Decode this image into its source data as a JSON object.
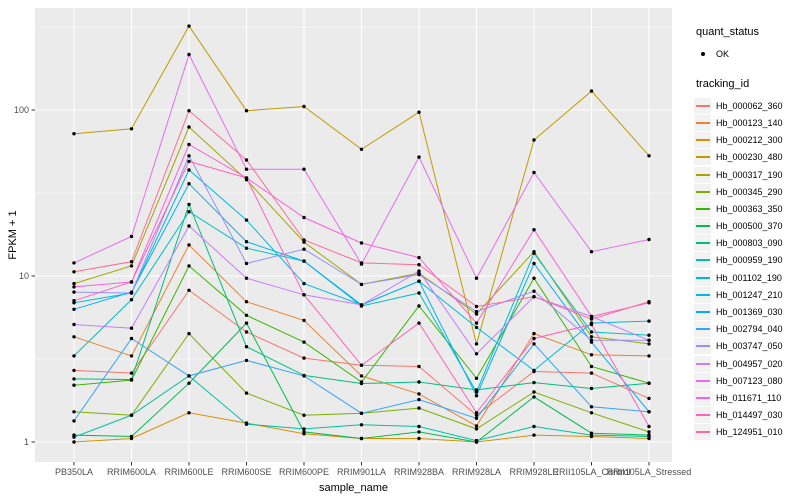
{
  "figure": {
    "panel_background": "#EBEBEB",
    "grid_color": "#FFFFFF",
    "tick_color": "#333333",
    "tick_label_color": "#4D4D4D"
  },
  "legend": {
    "quant_status": {
      "title": "quant_status",
      "items": [
        {
          "label": "OK",
          "symbol": "black-point"
        }
      ]
    },
    "tracking_id": {
      "title": "tracking_id"
    }
  },
  "chart_data": {
    "type": "line",
    "xlabel": "sample_name",
    "ylabel": "FPKM + 1",
    "log_y": true,
    "y_tick_values": [
      1,
      10,
      100
    ],
    "y_tick_labels": [
      "1",
      "10",
      "100"
    ],
    "y_minor_values": [
      3.162,
      31.62,
      316.2
    ],
    "ylim": [
      0.76,
      410
    ],
    "grid": true,
    "legend_position": "right",
    "point_marker": "black-dot",
    "categories": [
      "PB350LA",
      "RRIM600LA",
      "RRIM600LE",
      "RRIM600SE",
      "RRIM600PE",
      "RRIM901LA",
      "RRIM928BA",
      "RRIM928LA",
      "RRIM928LE",
      "RRII105LA_Control",
      "RRII105LA_Stressed"
    ],
    "series": [
      {
        "name": "Hb_000062_360",
        "color": "#F8766D",
        "values": [
          2.7,
          2.6,
          8.2,
          4.6,
          3.2,
          2.9,
          2.85,
          1.45,
          2.66,
          2.6,
          1.83
        ]
      },
      {
        "name": "Hb_000123_140",
        "color": "#EA8331",
        "values": [
          4.3,
          3.3,
          15.4,
          7.0,
          5.4,
          2.5,
          1.95,
          1.25,
          4.5,
          3.35,
          3.3
        ]
      },
      {
        "name": "Hb_000212_300",
        "color": "#D89000",
        "values": [
          1.0,
          1.05,
          1.5,
          1.3,
          1.12,
          1.05,
          1.05,
          1.0,
          1.1,
          1.08,
          1.05
        ]
      },
      {
        "name": "Hb_000230_480",
        "color": "#C09B00",
        "values": [
          72,
          77,
          320,
          99,
          105,
          58,
          97,
          3.9,
          66,
          130,
          53
        ]
      },
      {
        "name": "Hb_000317_190",
        "color": "#A3A500",
        "values": [
          9.0,
          11.5,
          79,
          38,
          16,
          8.9,
          10.4,
          5.9,
          14,
          4.3,
          3.9
        ]
      },
      {
        "name": "Hb_000345_290",
        "color": "#7CAE00",
        "values": [
          1.52,
          1.45,
          4.5,
          1.97,
          1.45,
          1.49,
          1.6,
          1.2,
          2.0,
          1.5,
          1.15
        ]
      },
      {
        "name": "Hb_000363_350",
        "color": "#39B600",
        "values": [
          2.2,
          2.36,
          11.5,
          5.8,
          4.0,
          2.3,
          6.6,
          2.42,
          9.7,
          2.85,
          2.26
        ]
      },
      {
        "name": "Hb_000500_370",
        "color": "#00BB4E",
        "values": [
          1.1,
          1.08,
          2.26,
          5.2,
          1.15,
          1.05,
          1.15,
          1.0,
          1.87,
          1.13,
          1.1
        ]
      },
      {
        "name": "Hb_000803_090",
        "color": "#00BF7D",
        "values": [
          2.4,
          2.38,
          27,
          3.75,
          2.52,
          2.25,
          2.3,
          2.06,
          2.28,
          2.1,
          2.26
        ]
      },
      {
        "name": "Hb_000959_190",
        "color": "#00C1A3",
        "values": [
          1.07,
          1.45,
          2.5,
          1.28,
          1.2,
          1.27,
          1.24,
          1.02,
          1.24,
          1.1,
          1.08
        ]
      },
      {
        "name": "Hb_001102_190",
        "color": "#00BFC4",
        "values": [
          3.3,
          7.2,
          24.4,
          14.7,
          12.3,
          6.6,
          7.9,
          2.0,
          13.7,
          4.6,
          4.4
        ]
      },
      {
        "name": "Hb_001247_210",
        "color": "#00BAE0",
        "values": [
          6.9,
          7.9,
          43.5,
          21.7,
          9.0,
          6.7,
          9.3,
          4.9,
          2.7,
          5.2,
          5.35
        ]
      },
      {
        "name": "Hb_001369_030",
        "color": "#00B0F6",
        "values": [
          6.3,
          8.0,
          36,
          16.1,
          12.3,
          6.7,
          9.3,
          1.9,
          11.9,
          4.0,
          1.52
        ]
      },
      {
        "name": "Hb_002794_040",
        "color": "#35A2FF",
        "values": [
          1.34,
          4.2,
          2.5,
          3.1,
          2.5,
          1.49,
          1.8,
          1.39,
          3.9,
          1.63,
          1.52
        ]
      },
      {
        "name": "Hb_003747_050",
        "color": "#9590FF",
        "values": [
          8.0,
          7.9,
          53,
          11.9,
          14.5,
          8.9,
          10.2,
          6.1,
          8.1,
          4.1,
          4.1
        ]
      },
      {
        "name": "Hb_004957_020",
        "color": "#C77CFF",
        "values": [
          5.1,
          4.85,
          20,
          9.7,
          7.7,
          6.7,
          10.7,
          3.4,
          7.5,
          5.7,
          4.1
        ]
      },
      {
        "name": "Hb_007123_080",
        "color": "#E76BF3",
        "values": [
          12,
          17.3,
          216,
          44,
          44,
          11.8,
          52,
          9.7,
          42,
          14,
          16.6
        ]
      },
      {
        "name": "Hb_011671_110",
        "color": "#FA62DB",
        "values": [
          8.6,
          9.2,
          62,
          39,
          22.5,
          15.8,
          12.9,
          5.2,
          19,
          5.7,
          6.9
        ]
      },
      {
        "name": "Hb_014497_030",
        "color": "#FF62BC",
        "values": [
          7.1,
          9.2,
          49,
          39,
          7.7,
          2.9,
          5.2,
          1.5,
          4.2,
          5.1,
          1.24
        ]
      },
      {
        "name": "Hb_124951_010",
        "color": "#FF6A98",
        "values": [
          10.6,
          12.2,
          99,
          50,
          16.5,
          12.0,
          11.7,
          6.55,
          7.5,
          5.5,
          7.0
        ]
      }
    ]
  }
}
